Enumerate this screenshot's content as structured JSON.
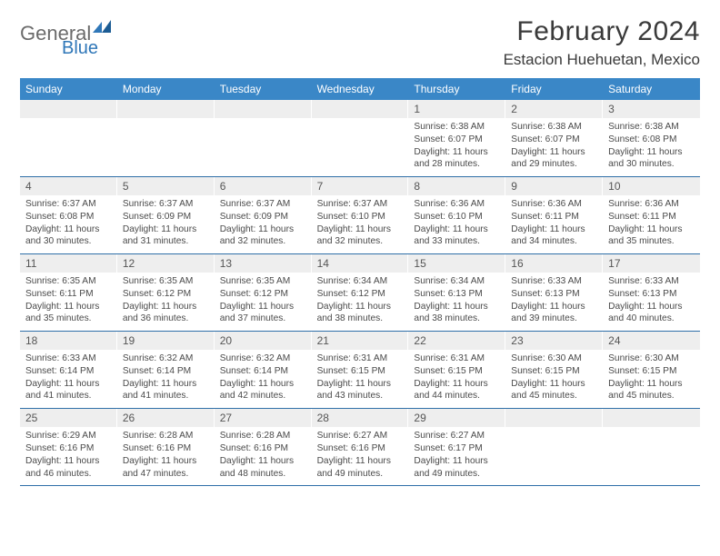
{
  "logo": {
    "text1": "General",
    "text2": "Blue"
  },
  "title": "February 2024",
  "location": "Estacion Huehuetan, Mexico",
  "colors": {
    "header_bg": "#3a87c7",
    "header_text": "#ffffff",
    "daynum_bg": "#eeeeee",
    "border": "#2f6fa8",
    "logo_gray": "#6b6b6b",
    "logo_blue": "#2f77b8"
  },
  "layout": {
    "columns": 7,
    "rows": 5
  },
  "weekdays": [
    "Sunday",
    "Monday",
    "Tuesday",
    "Wednesday",
    "Thursday",
    "Friday",
    "Saturday"
  ],
  "weeks": [
    [
      {
        "n": "",
        "sr": "",
        "ss": "",
        "dl": ""
      },
      {
        "n": "",
        "sr": "",
        "ss": "",
        "dl": ""
      },
      {
        "n": "",
        "sr": "",
        "ss": "",
        "dl": ""
      },
      {
        "n": "",
        "sr": "",
        "ss": "",
        "dl": ""
      },
      {
        "n": "1",
        "sr": "Sunrise: 6:38 AM",
        "ss": "Sunset: 6:07 PM",
        "dl": "Daylight: 11 hours and 28 minutes."
      },
      {
        "n": "2",
        "sr": "Sunrise: 6:38 AM",
        "ss": "Sunset: 6:07 PM",
        "dl": "Daylight: 11 hours and 29 minutes."
      },
      {
        "n": "3",
        "sr": "Sunrise: 6:38 AM",
        "ss": "Sunset: 6:08 PM",
        "dl": "Daylight: 11 hours and 30 minutes."
      }
    ],
    [
      {
        "n": "4",
        "sr": "Sunrise: 6:37 AM",
        "ss": "Sunset: 6:08 PM",
        "dl": "Daylight: 11 hours and 30 minutes."
      },
      {
        "n": "5",
        "sr": "Sunrise: 6:37 AM",
        "ss": "Sunset: 6:09 PM",
        "dl": "Daylight: 11 hours and 31 minutes."
      },
      {
        "n": "6",
        "sr": "Sunrise: 6:37 AM",
        "ss": "Sunset: 6:09 PM",
        "dl": "Daylight: 11 hours and 32 minutes."
      },
      {
        "n": "7",
        "sr": "Sunrise: 6:37 AM",
        "ss": "Sunset: 6:10 PM",
        "dl": "Daylight: 11 hours and 32 minutes."
      },
      {
        "n": "8",
        "sr": "Sunrise: 6:36 AM",
        "ss": "Sunset: 6:10 PM",
        "dl": "Daylight: 11 hours and 33 minutes."
      },
      {
        "n": "9",
        "sr": "Sunrise: 6:36 AM",
        "ss": "Sunset: 6:11 PM",
        "dl": "Daylight: 11 hours and 34 minutes."
      },
      {
        "n": "10",
        "sr": "Sunrise: 6:36 AM",
        "ss": "Sunset: 6:11 PM",
        "dl": "Daylight: 11 hours and 35 minutes."
      }
    ],
    [
      {
        "n": "11",
        "sr": "Sunrise: 6:35 AM",
        "ss": "Sunset: 6:11 PM",
        "dl": "Daylight: 11 hours and 35 minutes."
      },
      {
        "n": "12",
        "sr": "Sunrise: 6:35 AM",
        "ss": "Sunset: 6:12 PM",
        "dl": "Daylight: 11 hours and 36 minutes."
      },
      {
        "n": "13",
        "sr": "Sunrise: 6:35 AM",
        "ss": "Sunset: 6:12 PM",
        "dl": "Daylight: 11 hours and 37 minutes."
      },
      {
        "n": "14",
        "sr": "Sunrise: 6:34 AM",
        "ss": "Sunset: 6:12 PM",
        "dl": "Daylight: 11 hours and 38 minutes."
      },
      {
        "n": "15",
        "sr": "Sunrise: 6:34 AM",
        "ss": "Sunset: 6:13 PM",
        "dl": "Daylight: 11 hours and 38 minutes."
      },
      {
        "n": "16",
        "sr": "Sunrise: 6:33 AM",
        "ss": "Sunset: 6:13 PM",
        "dl": "Daylight: 11 hours and 39 minutes."
      },
      {
        "n": "17",
        "sr": "Sunrise: 6:33 AM",
        "ss": "Sunset: 6:13 PM",
        "dl": "Daylight: 11 hours and 40 minutes."
      }
    ],
    [
      {
        "n": "18",
        "sr": "Sunrise: 6:33 AM",
        "ss": "Sunset: 6:14 PM",
        "dl": "Daylight: 11 hours and 41 minutes."
      },
      {
        "n": "19",
        "sr": "Sunrise: 6:32 AM",
        "ss": "Sunset: 6:14 PM",
        "dl": "Daylight: 11 hours and 41 minutes."
      },
      {
        "n": "20",
        "sr": "Sunrise: 6:32 AM",
        "ss": "Sunset: 6:14 PM",
        "dl": "Daylight: 11 hours and 42 minutes."
      },
      {
        "n": "21",
        "sr": "Sunrise: 6:31 AM",
        "ss": "Sunset: 6:15 PM",
        "dl": "Daylight: 11 hours and 43 minutes."
      },
      {
        "n": "22",
        "sr": "Sunrise: 6:31 AM",
        "ss": "Sunset: 6:15 PM",
        "dl": "Daylight: 11 hours and 44 minutes."
      },
      {
        "n": "23",
        "sr": "Sunrise: 6:30 AM",
        "ss": "Sunset: 6:15 PM",
        "dl": "Daylight: 11 hours and 45 minutes."
      },
      {
        "n": "24",
        "sr": "Sunrise: 6:30 AM",
        "ss": "Sunset: 6:15 PM",
        "dl": "Daylight: 11 hours and 45 minutes."
      }
    ],
    [
      {
        "n": "25",
        "sr": "Sunrise: 6:29 AM",
        "ss": "Sunset: 6:16 PM",
        "dl": "Daylight: 11 hours and 46 minutes."
      },
      {
        "n": "26",
        "sr": "Sunrise: 6:28 AM",
        "ss": "Sunset: 6:16 PM",
        "dl": "Daylight: 11 hours and 47 minutes."
      },
      {
        "n": "27",
        "sr": "Sunrise: 6:28 AM",
        "ss": "Sunset: 6:16 PM",
        "dl": "Daylight: 11 hours and 48 minutes."
      },
      {
        "n": "28",
        "sr": "Sunrise: 6:27 AM",
        "ss": "Sunset: 6:16 PM",
        "dl": "Daylight: 11 hours and 49 minutes."
      },
      {
        "n": "29",
        "sr": "Sunrise: 6:27 AM",
        "ss": "Sunset: 6:17 PM",
        "dl": "Daylight: 11 hours and 49 minutes."
      },
      {
        "n": "",
        "sr": "",
        "ss": "",
        "dl": ""
      },
      {
        "n": "",
        "sr": "",
        "ss": "",
        "dl": ""
      }
    ]
  ]
}
